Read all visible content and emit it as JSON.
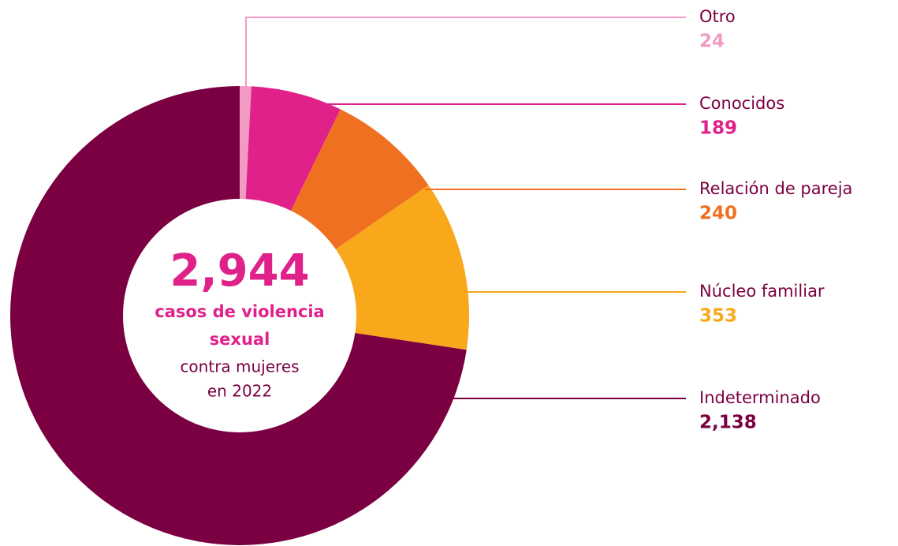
{
  "chart_data": {
    "type": "pie",
    "center_value": {
      "value": 2944,
      "label": "2,944"
    },
    "center_lines_highlight": [
      "casos de violencia",
      "sexual"
    ],
    "center_lines": [
      "contra mujeres",
      "en 2022"
    ],
    "categories": [
      "Otro",
      "Conocidos",
      "Relación de pareja",
      "Núcleo familiar",
      "Indeterminado"
    ],
    "values": [
      24,
      189,
      240,
      353,
      2138
    ],
    "value_labels": [
      "24",
      "189",
      "240",
      "353",
      "2,138"
    ],
    "colors": [
      "#f29ac4",
      "#e0218a",
      "#f07022",
      "#f9a81b",
      "#7a0041"
    ],
    "donut": true,
    "start_angle": "top",
    "direction": "clockwise"
  }
}
